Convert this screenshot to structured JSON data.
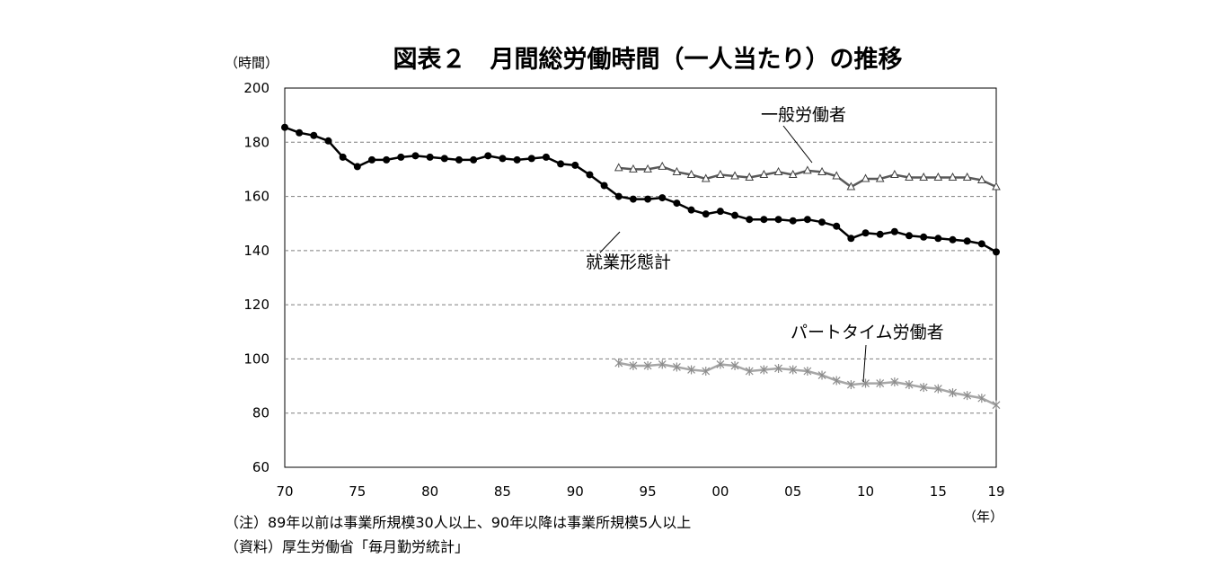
{
  "chart_data": {
    "type": "line",
    "title": "図表２　月間総労働時間（一人当たり）の推移",
    "ylabel": "（時間）",
    "xlabel": "（年）",
    "ylim": [
      60,
      200
    ],
    "yticks": [
      200,
      180,
      160,
      140,
      120,
      100,
      80,
      60
    ],
    "xlim": [
      1970,
      2019
    ],
    "xtick_labels": [
      {
        "x": 1970,
        "label": "70"
      },
      {
        "x": 1975,
        "label": "75"
      },
      {
        "x": 1980,
        "label": "80"
      },
      {
        "x": 1985,
        "label": "85"
      },
      {
        "x": 1990,
        "label": "90"
      },
      {
        "x": 1995,
        "label": "95"
      },
      {
        "x": 2000,
        "label": "00"
      },
      {
        "x": 2005,
        "label": "05"
      },
      {
        "x": 2010,
        "label": "10"
      },
      {
        "x": 2015,
        "label": "15"
      },
      {
        "x": 2019,
        "label": "19"
      }
    ],
    "grid": "horizontal dashed",
    "series": [
      {
        "name": "就業形態計",
        "color": "#000000",
        "marker": "circle",
        "x": [
          1970,
          1971,
          1972,
          1973,
          1974,
          1975,
          1976,
          1977,
          1978,
          1979,
          1980,
          1981,
          1982,
          1983,
          1984,
          1985,
          1986,
          1987,
          1988,
          1989,
          1990,
          1991,
          1992,
          1993,
          1994,
          1995,
          1996,
          1997,
          1998,
          1999,
          2000,
          2001,
          2002,
          2003,
          2004,
          2005,
          2006,
          2007,
          2008,
          2009,
          2010,
          2011,
          2012,
          2013,
          2014,
          2015,
          2016,
          2017,
          2018,
          2019
        ],
        "values": [
          185.5,
          183.5,
          182.5,
          180.5,
          174.5,
          171.0,
          173.5,
          173.5,
          174.5,
          175.0,
          174.5,
          174.0,
          173.5,
          173.5,
          175.0,
          174.0,
          173.5,
          174.0,
          174.5,
          172.0,
          171.5,
          168.0,
          164.0,
          160.0,
          159.0,
          159.0,
          159.5,
          157.5,
          155.0,
          153.5,
          154.5,
          153.0,
          151.5,
          151.5,
          151.5,
          151.0,
          151.5,
          150.5,
          149.0,
          144.5,
          146.5,
          146.0,
          147.0,
          145.5,
          145.0,
          144.5,
          144.0,
          143.5,
          142.5,
          139.5
        ]
      },
      {
        "name": "一般労働者",
        "color": "#595959",
        "marker": "triangle",
        "x": [
          1993,
          1994,
          1995,
          1996,
          1997,
          1998,
          1999,
          2000,
          2001,
          2002,
          2003,
          2004,
          2005,
          2006,
          2007,
          2008,
          2009,
          2010,
          2011,
          2012,
          2013,
          2014,
          2015,
          2016,
          2017,
          2018,
          2019
        ],
        "values": [
          170.5,
          170.0,
          170.0,
          171.0,
          169.0,
          168.0,
          166.5,
          168.0,
          167.5,
          167.0,
          168.0,
          169.0,
          168.0,
          169.5,
          169.0,
          167.5,
          163.5,
          166.5,
          166.5,
          168.0,
          167.0,
          167.0,
          167.0,
          167.0,
          167.0,
          166.0,
          163.5
        ]
      },
      {
        "name": "パートタイム労働者",
        "color": "#a6a6a6",
        "marker": "asterisk",
        "x": [
          1993,
          1994,
          1995,
          1996,
          1997,
          1998,
          1999,
          2000,
          2001,
          2002,
          2003,
          2004,
          2005,
          2006,
          2007,
          2008,
          2009,
          2010,
          2011,
          2012,
          2013,
          2014,
          2015,
          2016,
          2017,
          2018,
          2019
        ],
        "values": [
          98.5,
          97.5,
          97.5,
          98.0,
          97.0,
          96.0,
          95.5,
          98.0,
          97.5,
          95.5,
          96.0,
          96.5,
          96.0,
          95.5,
          94.0,
          92.0,
          90.5,
          91.0,
          91.0,
          91.5,
          90.5,
          89.5,
          89.0,
          87.5,
          86.5,
          85.5,
          83.0
        ]
      }
    ],
    "notes": [
      "（注）89年以前は事業所規模30人以上、90年以降は事業所規模5人以上",
      "（資料）厚生労働省「毎月勤労統計」"
    ]
  }
}
